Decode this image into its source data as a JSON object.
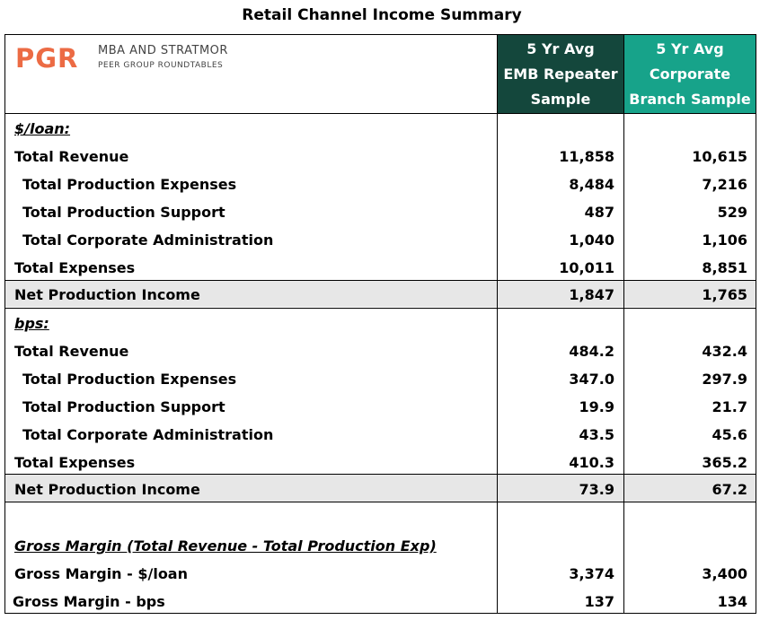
{
  "title": "Retail Channel Income Summary",
  "logo": {
    "mark": "PGR",
    "line1": "MBA AND STRATMOR",
    "line2": "PEER GROUP ROUNDTABLES"
  },
  "columns": [
    {
      "lines": [
        "5 Yr Avg",
        "EMB Repeater",
        "Sample"
      ],
      "color": "#14473c"
    },
    {
      "lines": [
        "5 Yr Avg",
        "Corporate",
        "Branch Sample"
      ],
      "color": "#17a38a"
    }
  ],
  "band_color": "#e7e7e7",
  "rows": [
    {
      "label": "$/loan:",
      "v1": "",
      "v2": ""
    },
    {
      "label": "Total Revenue",
      "v1": "11,858",
      "v2": "10,615"
    },
    {
      "label": "Total Production Expenses",
      "v1": "8,484",
      "v2": "7,216"
    },
    {
      "label": "Total Production Support",
      "v1": "487",
      "v2": "529"
    },
    {
      "label": "Total Corporate Administration",
      "v1": "1,040",
      "v2": "1,106"
    },
    {
      "label": "Total Expenses",
      "v1": "10,011",
      "v2": "8,851"
    },
    {
      "label": "Net Production Income",
      "v1": "1,847",
      "v2": "1,765"
    },
    {
      "label": "bps:",
      "v1": "",
      "v2": ""
    },
    {
      "label": "Total Revenue",
      "v1": "484.2",
      "v2": "432.4"
    },
    {
      "label": "Total Production Expenses",
      "v1": "347.0",
      "v2": "297.9"
    },
    {
      "label": "Total Production Support",
      "v1": "19.9",
      "v2": "21.7"
    },
    {
      "label": "Total Corporate Administration",
      "v1": "43.5",
      "v2": "45.6"
    },
    {
      "label": "Total Expenses",
      "v1": "410.3",
      "v2": "365.2"
    },
    {
      "label": "Net Production Income",
      "v1": "73.9",
      "v2": "67.2"
    },
    {
      "label": "",
      "v1": "",
      "v2": ""
    },
    {
      "label": "Gross Margin (Total Revenue - Total Production Exp)",
      "v1": "",
      "v2": ""
    },
    {
      "label": "Gross Margin - $/loan",
      "v1": "3,374",
      "v2": "3,400"
    },
    {
      "label": "Gross Margin - bps",
      "v1": "137",
      "v2": "134"
    }
  ]
}
